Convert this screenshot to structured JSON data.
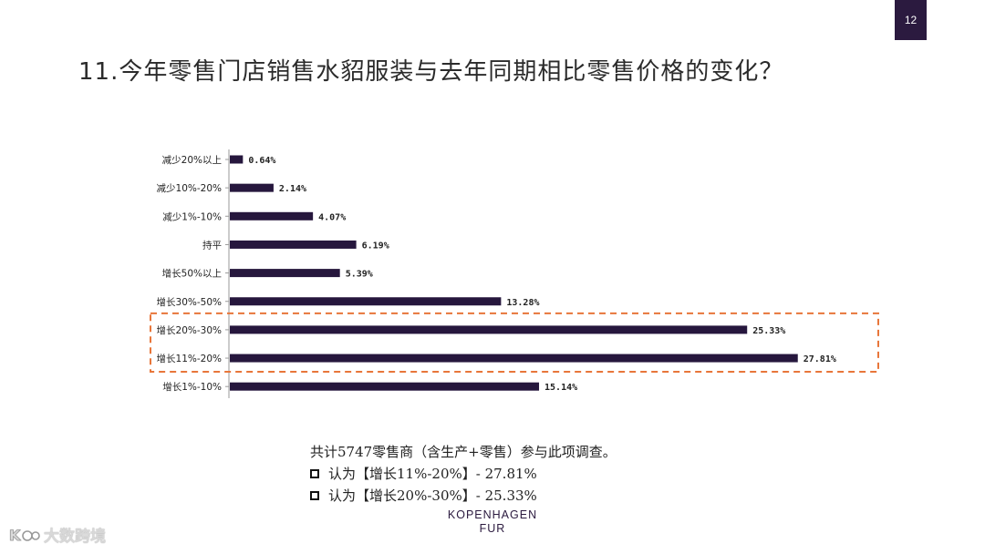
{
  "page": {
    "number": "12"
  },
  "title": "11.今年零售门店销售水貂服装与去年同期相比零售价格的变化？",
  "chart_data": {
    "type": "bar",
    "orientation": "horizontal",
    "categories": [
      "减少20%以上",
      "减少10%-20%",
      "减少1%-10%",
      "持平",
      "增长50%以上",
      "增长30%-50%",
      "增长20%-30%",
      "增长11%-20%",
      "增长1%-10%"
    ],
    "values": [
      0.64,
      2.14,
      4.07,
      6.19,
      5.39,
      13.28,
      25.33,
      27.81,
      15.14
    ],
    "value_labels": [
      "0.64%",
      "2.14%",
      "4.07%",
      "6.19%",
      "5.39%",
      "13.28%",
      "25.33%",
      "27.81%",
      "15.14%"
    ],
    "highlighted_categories": [
      "增长20%-30%",
      "增长11%-20%"
    ],
    "bar_color": "#26173d",
    "highlight_color": "#e8763a",
    "xlim": [
      0,
      28
    ],
    "grid": false
  },
  "notes": {
    "summary": "共计5747零售商（含生产+零售）参与此项调查。",
    "items": [
      "认为【增长11%-20%】- 27.81%",
      "认为【增长20%-30%】- 25.33%"
    ]
  },
  "logo": {
    "line1": "KOPENHAGEN",
    "line2": "FUR"
  },
  "watermark": {
    "text": "大数跨境"
  }
}
